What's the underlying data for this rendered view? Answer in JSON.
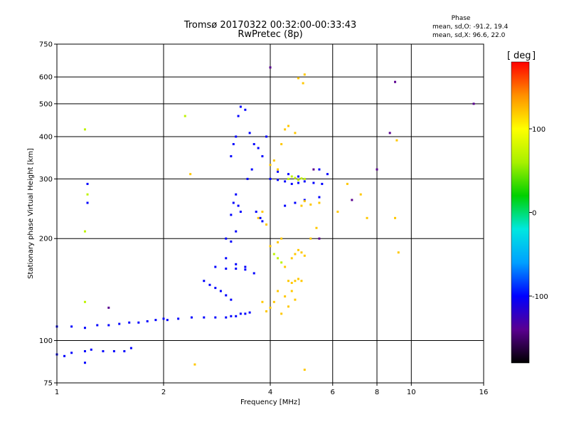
{
  "header": {
    "title_line1": "Tromsø 20170322 00:32:00-00:33:43",
    "title_line2": "RwPretec (8p)",
    "phase_title": "Phase",
    "phase_line1": "mean, sd,O: -91.2, 19.4",
    "phase_line2": "mean, sd,X:  96.6, 22.0"
  },
  "colorbar": {
    "unit_label": "deg",
    "ticks": [
      "100",
      "0",
      "-100"
    ],
    "tick_values": [
      100,
      0,
      -100
    ],
    "range": [
      -180,
      180
    ],
    "stops": [
      "#000000",
      "#5a0090",
      "#0000ff",
      "#00a0ff",
      "#00e8e0",
      "#00d000",
      "#a8f000",
      "#ffff00",
      "#ff9000",
      "#ff0000"
    ]
  },
  "chart_data": {
    "type": "scatter",
    "title": "Tromsø 20170322 00:32:00-00:33:43",
    "subtitle": "RwPretec (8p)",
    "xlabel": "Frequency [MHz]",
    "ylabel": "Stationary phase Virtual Height [km]",
    "xscale": "log",
    "yscale": "log",
    "xlim": [
      1,
      16
    ],
    "ylim": [
      75,
      750
    ],
    "xticks": [
      1,
      2,
      4,
      6,
      8,
      10,
      16
    ],
    "xtick_labels": [
      "1",
      "2",
      "4",
      "6",
      "8",
      "10",
      "16"
    ],
    "yticks": [
      75,
      100,
      200,
      300,
      400,
      500,
      600,
      750
    ],
    "ytick_labels": [
      "75",
      "100",
      "200",
      "300",
      "400",
      "500",
      "600",
      "750"
    ],
    "grid": true,
    "color_value": "phase (deg)",
    "series": [
      {
        "values": [
          [
            1.0,
            91
          ],
          [
            1.05,
            90
          ],
          [
            1.1,
            92
          ],
          [
            1.2,
            93
          ],
          [
            1.25,
            94
          ],
          [
            1.35,
            93
          ],
          [
            1.55,
            93
          ],
          [
            1.62,
            95
          ],
          [
            1.0,
            110
          ],
          [
            1.1,
            110
          ],
          [
            1.2,
            109
          ],
          [
            1.3,
            111
          ],
          [
            1.4,
            111
          ],
          [
            1.5,
            112
          ],
          [
            1.6,
            113
          ],
          [
            1.7,
            113
          ],
          [
            1.8,
            114
          ],
          [
            1.9,
            115
          ],
          [
            2.0,
            116
          ],
          [
            2.2,
            116
          ],
          [
            2.4,
            117
          ],
          [
            2.6,
            117
          ],
          [
            2.8,
            117
          ],
          [
            3.0,
            117
          ],
          [
            3.1,
            118
          ],
          [
            3.2,
            118
          ],
          [
            3.3,
            120
          ],
          [
            3.4,
            120
          ],
          [
            3.5,
            121
          ],
          [
            1.2,
            86
          ],
          [
            1.45,
            93
          ],
          [
            2.6,
            150
          ],
          [
            2.7,
            146
          ],
          [
            2.8,
            143
          ],
          [
            2.9,
            140
          ],
          [
            3.0,
            136
          ],
          [
            3.1,
            132
          ],
          [
            2.8,
            165
          ],
          [
            3.0,
            163
          ],
          [
            3.2,
            163
          ],
          [
            3.4,
            162
          ],
          [
            3.6,
            158
          ],
          [
            3.0,
            175
          ],
          [
            3.2,
            168
          ],
          [
            3.4,
            165
          ],
          [
            3.0,
            200
          ],
          [
            3.1,
            196
          ],
          [
            3.2,
            210
          ],
          [
            3.1,
            235
          ],
          [
            3.15,
            255
          ],
          [
            3.2,
            270
          ],
          [
            3.25,
            250
          ],
          [
            3.3,
            240
          ],
          [
            3.1,
            350
          ],
          [
            3.15,
            380
          ],
          [
            3.2,
            400
          ],
          [
            3.25,
            460
          ],
          [
            3.3,
            490
          ],
          [
            3.4,
            480
          ],
          [
            3.5,
            410
          ],
          [
            3.6,
            380
          ],
          [
            3.7,
            370
          ],
          [
            3.8,
            350
          ],
          [
            3.9,
            400
          ],
          [
            3.45,
            300
          ],
          [
            3.55,
            320
          ],
          [
            3.65,
            240
          ],
          [
            3.75,
            230
          ],
          [
            3.8,
            225
          ],
          [
            4.0,
            300
          ],
          [
            4.2,
            298
          ],
          [
            4.4,
            295
          ],
          [
            4.6,
            290
          ],
          [
            4.8,
            292
          ],
          [
            5.0,
            295
          ],
          [
            5.3,
            292
          ],
          [
            5.6,
            290
          ],
          [
            4.2,
            315
          ],
          [
            4.5,
            310
          ],
          [
            4.8,
            305
          ],
          [
            5.5,
            320
          ],
          [
            5.8,
            310
          ],
          [
            4.4,
            250
          ],
          [
            4.7,
            255
          ],
          [
            5.0,
            260
          ],
          [
            5.5,
            265
          ],
          [
            1.22,
            290
          ],
          [
            1.22,
            255
          ],
          [
            2.05,
            115
          ]
        ]
      },
      {
        "values": [
          [
            3.8,
            130
          ],
          [
            3.9,
            122
          ],
          [
            4.0,
            125
          ],
          [
            4.1,
            130
          ],
          [
            4.2,
            140
          ],
          [
            4.3,
            120
          ],
          [
            4.4,
            135
          ],
          [
            4.5,
            126
          ],
          [
            4.6,
            140
          ],
          [
            4.7,
            132
          ],
          [
            4.4,
            165
          ],
          [
            4.5,
            150
          ],
          [
            4.6,
            148
          ],
          [
            4.7,
            150
          ],
          [
            4.8,
            152
          ],
          [
            4.9,
            150
          ],
          [
            4.6,
            175
          ],
          [
            4.7,
            180
          ],
          [
            4.8,
            185
          ],
          [
            4.9,
            182
          ],
          [
            5.0,
            178
          ],
          [
            4.0,
            190
          ],
          [
            4.2,
            195
          ],
          [
            4.3,
            200
          ],
          [
            3.7,
            230
          ],
          [
            3.8,
            240
          ],
          [
            3.9,
            220
          ],
          [
            4.0,
            330
          ],
          [
            4.1,
            340
          ],
          [
            4.2,
            320
          ],
          [
            4.3,
            380
          ],
          [
            4.4,
            420
          ],
          [
            4.5,
            430
          ],
          [
            4.7,
            410
          ],
          [
            4.9,
            250
          ],
          [
            5.0,
            258
          ],
          [
            5.2,
            252
          ],
          [
            5.5,
            255
          ],
          [
            4.8,
            595
          ],
          [
            4.95,
            575
          ],
          [
            5.0,
            610
          ],
          [
            2.45,
            85
          ],
          [
            5.0,
            82
          ],
          [
            5.2,
            200
          ],
          [
            5.4,
            215
          ],
          [
            6.2,
            240
          ],
          [
            6.6,
            290
          ],
          [
            7.2,
            270
          ],
          [
            7.5,
            230
          ],
          [
            9.0,
            230
          ],
          [
            9.2,
            182
          ],
          [
            9.1,
            390
          ],
          [
            2.38,
            310
          ]
        ]
      },
      {
        "values": [
          [
            4.5,
            300
          ],
          [
            4.6,
            305
          ],
          [
            4.7,
            302
          ],
          [
            4.8,
            298
          ],
          [
            4.9,
            301
          ],
          [
            5.0,
            300
          ],
          [
            4.1,
            180
          ],
          [
            4.2,
            175
          ],
          [
            4.3,
            170
          ],
          [
            1.2,
            420
          ],
          [
            1.22,
            270
          ],
          [
            1.2,
            210
          ],
          [
            1.2,
            130
          ],
          [
            2.3,
            460
          ]
        ]
      },
      {
        "values": [
          [
            4.0,
            640
          ],
          [
            5.3,
            320
          ],
          [
            6.8,
            260
          ],
          [
            8.0,
            320
          ],
          [
            8.7,
            410
          ],
          [
            9.0,
            580
          ],
          [
            15.0,
            500
          ],
          [
            5.5,
            200
          ],
          [
            1.4,
            125
          ]
        ]
      }
    ],
    "series_phase_deg": [
      -100,
      120,
      70,
      -140
    ]
  }
}
